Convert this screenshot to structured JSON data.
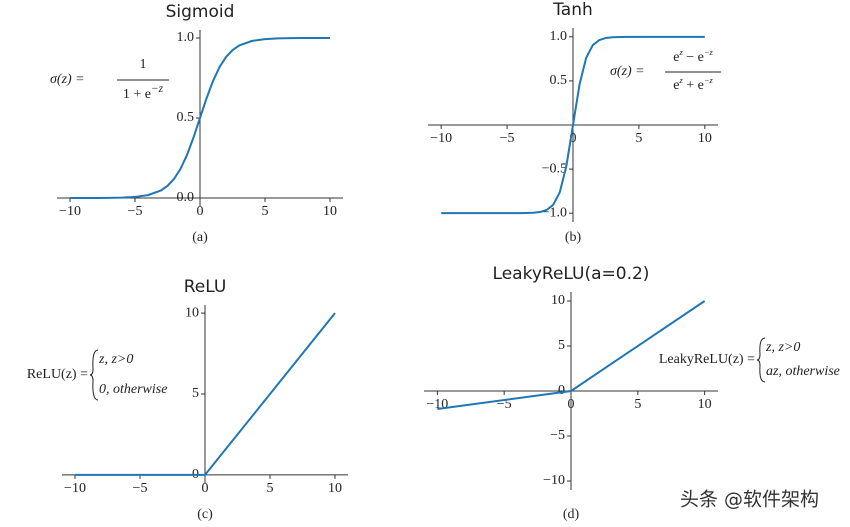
{
  "chart_data": [
    {
      "type": "line",
      "title": "Sigmoid",
      "caption": "(a)",
      "color": "#1f77b4",
      "x": [
        -10,
        -9,
        -8,
        -7,
        -6,
        -5,
        -4,
        -3,
        -2.5,
        -2,
        -1.5,
        -1,
        -0.5,
        0,
        0.5,
        1,
        1.5,
        2,
        2.5,
        3,
        4,
        5,
        6,
        7,
        8,
        9,
        10
      ],
      "values": [
        0,
        0.0001,
        0.0003,
        0.0009,
        0.0025,
        0.0067,
        0.018,
        0.047,
        0.076,
        0.119,
        0.182,
        0.269,
        0.378,
        0.5,
        0.622,
        0.731,
        0.818,
        0.881,
        0.924,
        0.953,
        0.982,
        0.993,
        0.998,
        0.999,
        1,
        1,
        1
      ],
      "xlim": [
        -11,
        11
      ],
      "ylim": [
        -0.05,
        1.05
      ],
      "xticks": [
        {
          "value": -10,
          "label": "−10"
        },
        {
          "value": -5,
          "label": "−5"
        },
        0,
        5,
        10
      ],
      "yticks": [
        {
          "value": 0,
          "label": "0.0"
        },
        0.5,
        {
          "value": 1,
          "label": "1.0"
        }
      ],
      "formula": {
        "lhs": "σ(z) =",
        "numerator": [
          "1"
        ],
        "denominator": [
          "1 + e",
          "−z"
        ]
      }
    },
    {
      "type": "line",
      "title": "Tanh",
      "caption": "(b)",
      "color": "#1f77b4",
      "x": [
        -10,
        -8,
        -6,
        -4,
        -3,
        -2.5,
        -2,
        -1.5,
        -1,
        -0.5,
        0,
        0.5,
        1,
        1.5,
        2,
        2.5,
        3,
        4,
        6,
        8,
        10
      ],
      "values": [
        -1,
        -1,
        -1,
        -0.999,
        -0.995,
        -0.987,
        -0.964,
        -0.905,
        -0.762,
        -0.462,
        0,
        0.462,
        0.762,
        0.905,
        0.964,
        0.987,
        0.995,
        0.999,
        1,
        1,
        1
      ],
      "xlim": [
        -11,
        11
      ],
      "ylim": [
        -1.1,
        1.1
      ],
      "xticks": [
        {
          "value": -10,
          "label": "−10"
        },
        {
          "value": -5,
          "label": "−5"
        },
        0,
        5,
        10
      ],
      "yticks": [
        {
          "value": -1,
          "label": "−1.0"
        },
        {
          "value": -0.5,
          "label": "−0.5"
        },
        0.5,
        {
          "value": 1,
          "label": "1.0"
        }
      ],
      "formula": {
        "lhs": "σ(z) =",
        "numerator": [
          "e",
          "z",
          " − e",
          "−z"
        ],
        "denominator": [
          "e",
          "z",
          " + e",
          "−z"
        ]
      }
    },
    {
      "type": "line",
      "title": "ReLU",
      "caption": "(c)",
      "color": "#1f77b4",
      "x": [
        -10,
        0,
        10
      ],
      "values": [
        0,
        0,
        10
      ],
      "xlim": [
        -11,
        11
      ],
      "ylim": [
        -0.5,
        10.5
      ],
      "xticks": [
        {
          "value": -10,
          "label": "−10"
        },
        {
          "value": -5,
          "label": "−5"
        },
        0,
        5,
        10
      ],
      "yticks": [
        0,
        5,
        10
      ],
      "formula": {
        "lhs": "ReLU(z) =",
        "cases": [
          "z, z>0",
          "0, otherwise"
        ]
      }
    },
    {
      "type": "line",
      "title": "LeakyReLU(a=0.2)",
      "caption": "(d)",
      "color": "#1f77b4",
      "x": [
        -10,
        0,
        10
      ],
      "values": [
        -2,
        0,
        10
      ],
      "xlim": [
        -11,
        11
      ],
      "ylim": [
        -11,
        11
      ],
      "xticks": [
        {
          "value": -10,
          "label": "−10"
        },
        {
          "value": -5,
          "label": "−5"
        },
        0,
        5,
        10
      ],
      "yticks": [
        {
          "value": -10,
          "label": "−10"
        },
        {
          "value": -5,
          "label": "−5"
        },
        0,
        5,
        10
      ],
      "formula": {
        "lhs": "LeakyReLU(z) =",
        "cases": [
          "z, z>0",
          "az, otherwise"
        ]
      }
    }
  ],
  "watermark": "头条 @软件架构"
}
